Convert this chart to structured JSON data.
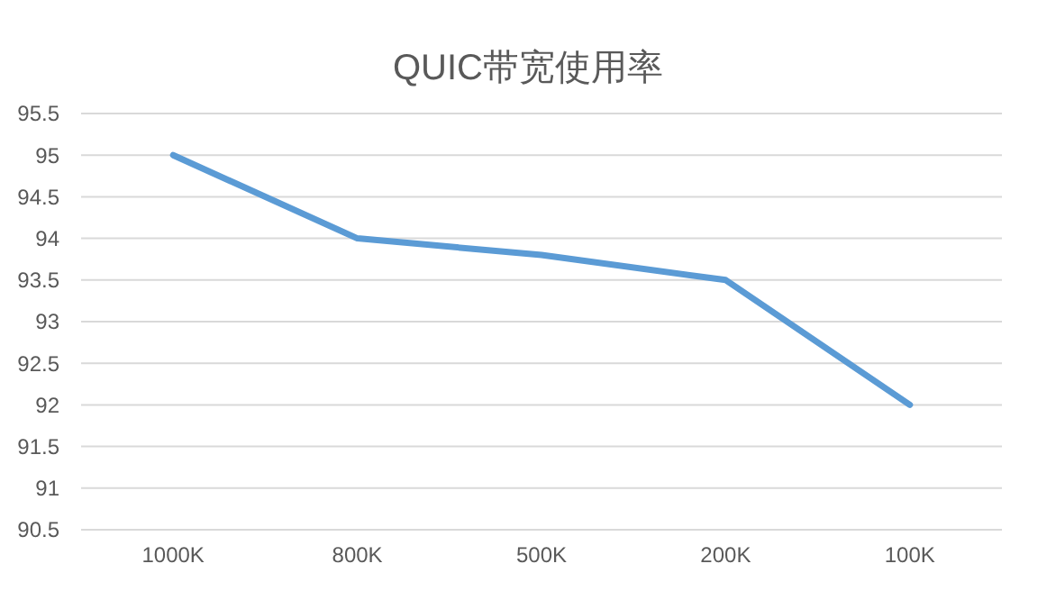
{
  "chart_data": {
    "type": "line",
    "title": "QUIC带宽使用率",
    "categories": [
      "1000K",
      "800K",
      "500K",
      "200K",
      "100K"
    ],
    "series": [
      {
        "color": "#5b9bd5",
        "values": [
          95,
          94,
          93.8,
          93.5,
          92
        ]
      }
    ],
    "ylim": [
      90.5,
      95.5
    ],
    "yticks": [
      90.5,
      91,
      91.5,
      92,
      92.5,
      93,
      93.5,
      94,
      94.5,
      95,
      95.5
    ],
    "grid": "y",
    "marker": "none",
    "line_style": "solid"
  }
}
